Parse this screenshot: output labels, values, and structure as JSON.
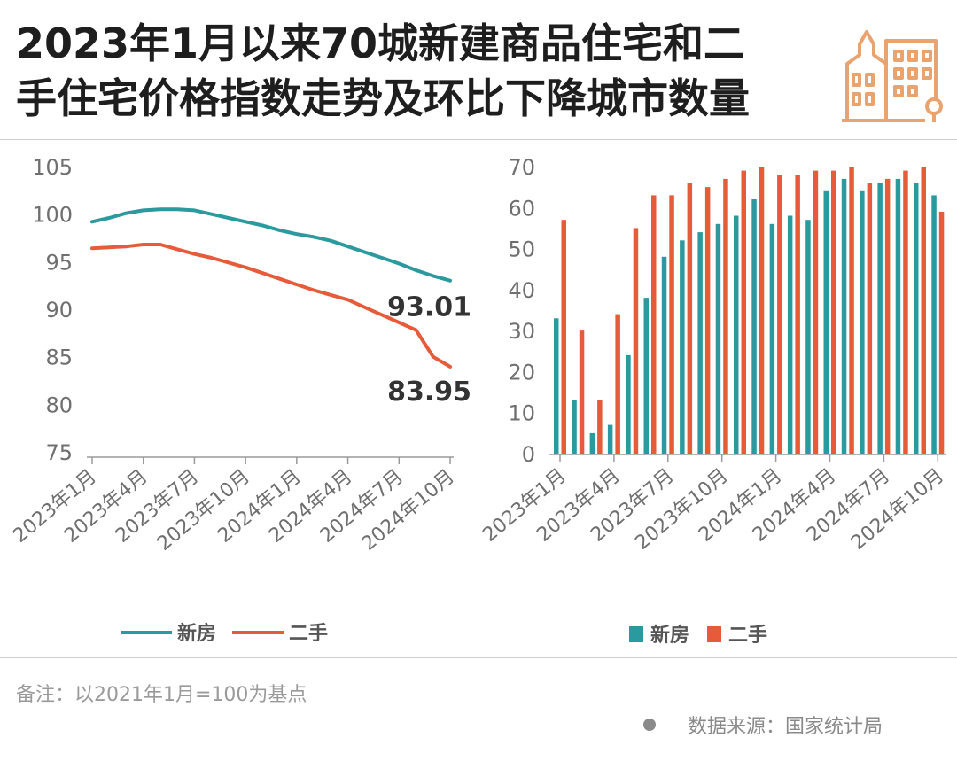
{
  "title": {
    "line1": "2023年1月以来70城新建商品住宅和二",
    "line2": "手住宅价格指数走势及环比下降城市数量"
  },
  "logo_icon": "city-buildings-icon",
  "colors": {
    "new_home": "#2b9a9f",
    "second_hand": "#e65b3a",
    "logo": "#e8a470"
  },
  "note": "备注：以2021年1月=100为基点",
  "source": "数据来源：国家统计局",
  "chart_data": [
    {
      "type": "line",
      "x": [
        "2023年1月",
        "2023年2月",
        "2023年3月",
        "2023年4月",
        "2023年5月",
        "2023年6月",
        "2023年7月",
        "2023年8月",
        "2023年9月",
        "2023年10月",
        "2023年11月",
        "2023年12月",
        "2024年1月",
        "2024年2月",
        "2024年3月",
        "2024年4月",
        "2024年5月",
        "2024年6月",
        "2024年7月",
        "2024年8月",
        "2024年9月",
        "2024年10月"
      ],
      "xticks": [
        "2023年1月",
        "2023年4月",
        "2023年7月",
        "2023年10月",
        "2024年1月",
        "2024年4月",
        "2024年7月",
        "2024年10月"
      ],
      "series": [
        {
          "name": "新房",
          "values": [
            99.2,
            99.6,
            100.1,
            100.4,
            100.5,
            100.5,
            100.4,
            100.0,
            99.6,
            99.2,
            98.8,
            98.3,
            97.9,
            97.6,
            97.2,
            96.6,
            96.0,
            95.4,
            94.8,
            94.1,
            93.5,
            93.01
          ]
        },
        {
          "name": "二手",
          "values": [
            96.4,
            96.5,
            96.6,
            96.8,
            96.8,
            96.3,
            95.8,
            95.4,
            94.9,
            94.4,
            93.8,
            93.2,
            92.6,
            92.0,
            91.5,
            91.0,
            90.2,
            89.4,
            88.6,
            87.8,
            85.0,
            83.95
          ]
        }
      ],
      "end_labels": [
        "93.01",
        "83.95"
      ],
      "yticks": [
        "75",
        "80",
        "85",
        "90",
        "95",
        "100",
        "105"
      ],
      "ylim": [
        75,
        105
      ],
      "legend": [
        "新房",
        "二手"
      ],
      "legend_position": "bottom-center"
    },
    {
      "type": "bar",
      "x": [
        "2023年1月",
        "2023年2月",
        "2023年3月",
        "2023年4月",
        "2023年5月",
        "2023年6月",
        "2023年7月",
        "2023年8月",
        "2023年9月",
        "2023年10月",
        "2023年11月",
        "2023年12月",
        "2024年1月",
        "2024年2月",
        "2024年3月",
        "2024年4月",
        "2024年5月",
        "2024年6月",
        "2024年7月",
        "2024年8月",
        "2024年9月",
        "2024年10月"
      ],
      "xticks": [
        "2023年1月",
        "2023年4月",
        "2023年7月",
        "2023年10月",
        "2024年1月",
        "2024年4月",
        "2024年7月",
        "2024年10月"
      ],
      "series": [
        {
          "name": "新房",
          "values": [
            33,
            13,
            5,
            7,
            24,
            38,
            48,
            52,
            54,
            56,
            58,
            62,
            56,
            58,
            57,
            64,
            67,
            64,
            66,
            67,
            66,
            63
          ]
        },
        {
          "name": "二手",
          "values": [
            57,
            30,
            13,
            34,
            55,
            63,
            63,
            66,
            65,
            67,
            69,
            70,
            68,
            68,
            69,
            69,
            70,
            66,
            67,
            69,
            70,
            59
          ]
        }
      ],
      "yticks": [
        "0",
        "10",
        "20",
        "30",
        "40",
        "50",
        "60",
        "70"
      ],
      "ylim": [
        0,
        70
      ],
      "legend": [
        "新房",
        "二手"
      ],
      "legend_position": "bottom-center"
    }
  ]
}
